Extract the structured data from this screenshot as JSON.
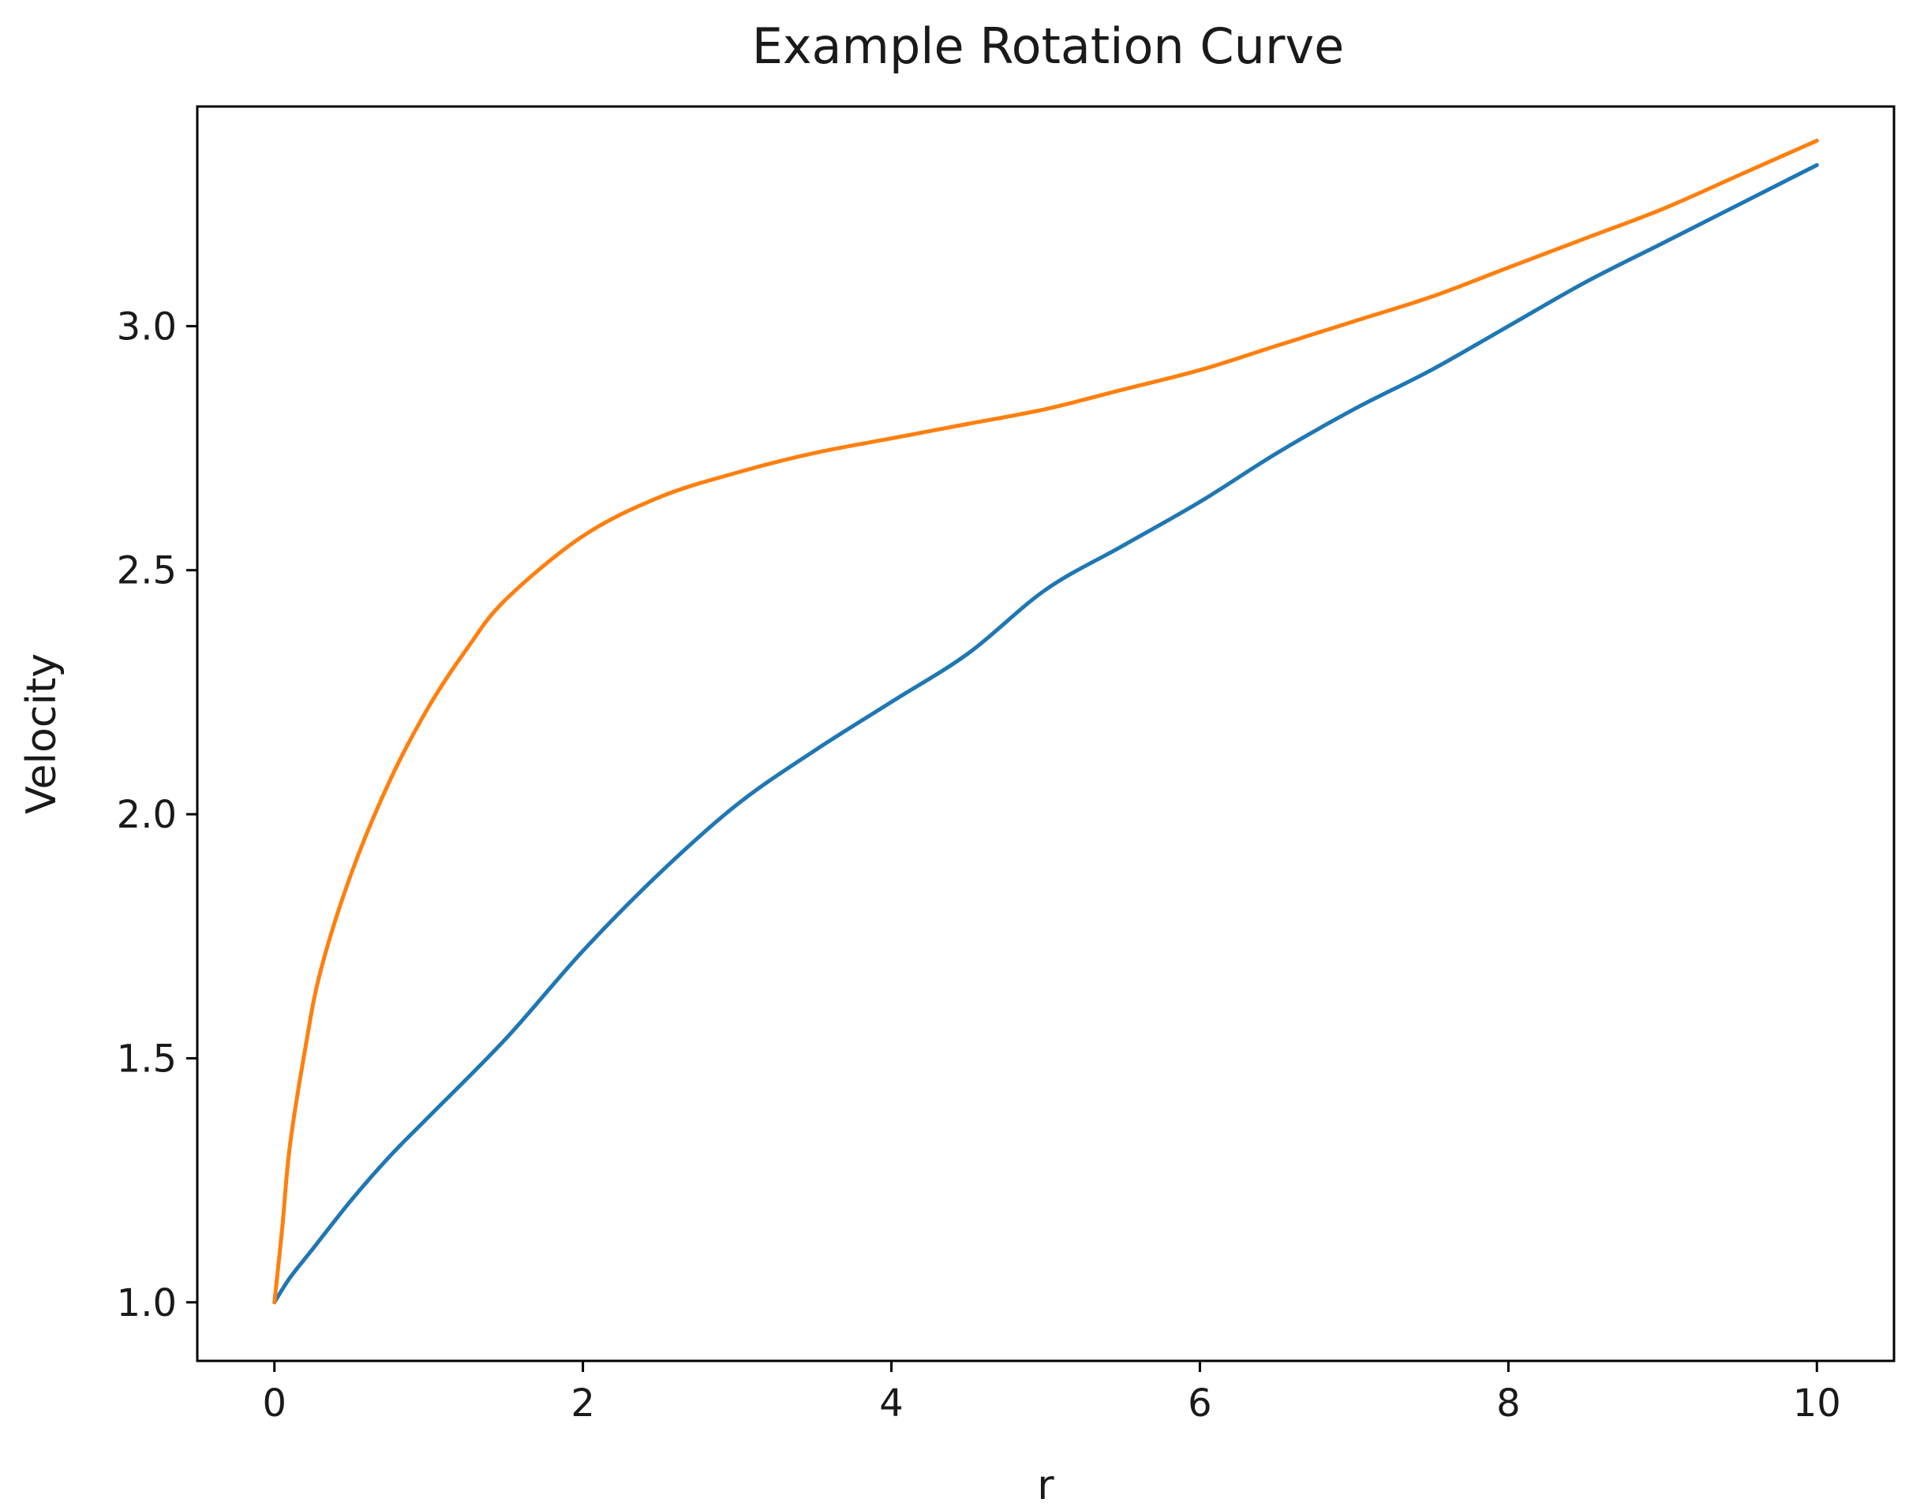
{
  "chart_data": {
    "type": "line",
    "title": "Example Rotation Curve",
    "xlabel": "r",
    "ylabel": "Velocity",
    "xlim": [
      -0.5,
      10.5
    ],
    "ylim": [
      0.88,
      3.45
    ],
    "xticks": [
      0,
      2,
      4,
      6,
      8,
      10
    ],
    "xtick_labels": [
      "0",
      "2",
      "4",
      "6",
      "8",
      "10"
    ],
    "yticks": [
      1.0,
      1.5,
      2.0,
      2.5,
      3.0
    ],
    "ytick_labels": [
      "1.0",
      "1.5",
      "2.0",
      "2.5",
      "3.0"
    ],
    "grid": false,
    "series": [
      {
        "color": "#1f77b4",
        "x": [
          0,
          0.1,
          0.25,
          0.5,
          0.75,
          1,
          1.5,
          2,
          2.5,
          3,
          3.5,
          4,
          4.5,
          5,
          5.5,
          6,
          6.5,
          7,
          7.5,
          8,
          8.5,
          9,
          9.5,
          10
        ],
        "y": [
          1.0,
          1.05,
          1.11,
          1.21,
          1.3,
          1.38,
          1.54,
          1.72,
          1.88,
          2.02,
          2.13,
          2.23,
          2.33,
          2.46,
          2.55,
          2.64,
          2.74,
          2.83,
          2.91,
          3.0,
          3.09,
          3.17,
          3.25,
          3.33
        ]
      },
      {
        "color": "#ff7f0e",
        "x": [
          0,
          0.05,
          0.1,
          0.2,
          0.3,
          0.5,
          0.75,
          1,
          1.25,
          1.5,
          2,
          2.5,
          3,
          3.5,
          4,
          4.5,
          5,
          5.5,
          6,
          6.5,
          7,
          7.5,
          8,
          8.5,
          9,
          9.5,
          10
        ],
        "y": [
          1.0,
          1.15,
          1.32,
          1.52,
          1.68,
          1.88,
          2.07,
          2.22,
          2.34,
          2.44,
          2.57,
          2.65,
          2.7,
          2.74,
          2.77,
          2.8,
          2.83,
          2.87,
          2.91,
          2.96,
          3.01,
          3.06,
          3.12,
          3.18,
          3.24,
          3.31,
          3.38
        ]
      }
    ]
  }
}
